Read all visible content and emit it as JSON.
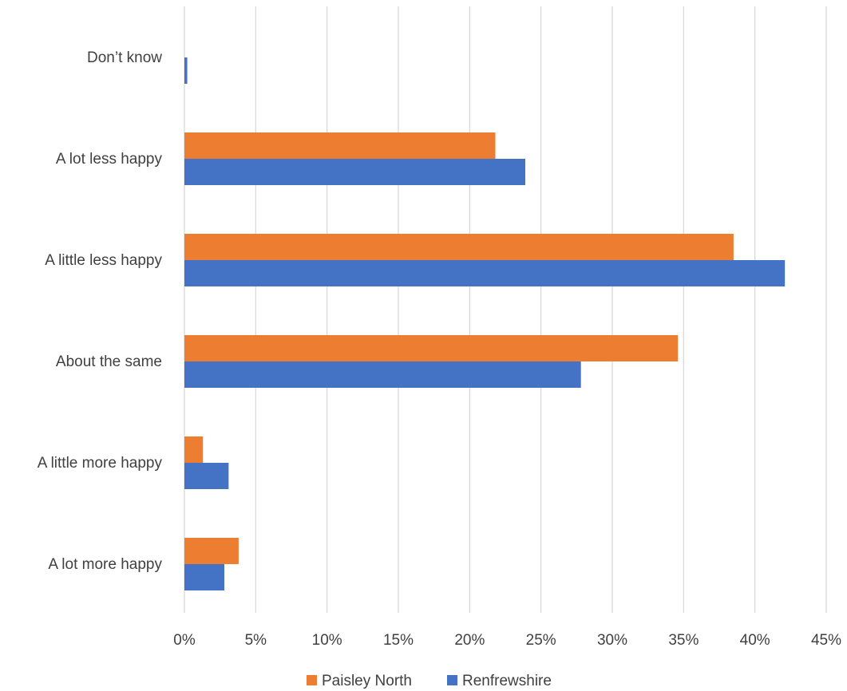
{
  "chart_data": {
    "type": "bar",
    "orientation": "horizontal",
    "categories": [
      "A lot more happy",
      "A little more happy",
      "About the same",
      "A little less happy",
      "A lot less happy",
      "Don’t know"
    ],
    "series": [
      {
        "name": "Paisley North",
        "color": "#ED7D31",
        "values": [
          3.8,
          1.3,
          34.6,
          38.5,
          21.8,
          0
        ]
      },
      {
        "name": "Renfrewshire",
        "color": "#4472C4",
        "values": [
          2.8,
          3.1,
          27.8,
          42.1,
          23.9,
          0.2
        ]
      }
    ],
    "xlim": [
      0,
      45
    ],
    "ticks": [
      "0%",
      "5%",
      "10%",
      "15%",
      "20%",
      "25%",
      "30%",
      "35%",
      "40%",
      "45%"
    ],
    "tick_values": [
      0,
      5,
      10,
      15,
      20,
      25,
      30,
      35,
      40,
      45
    ],
    "grid": "vertical",
    "legend": "bottom"
  }
}
